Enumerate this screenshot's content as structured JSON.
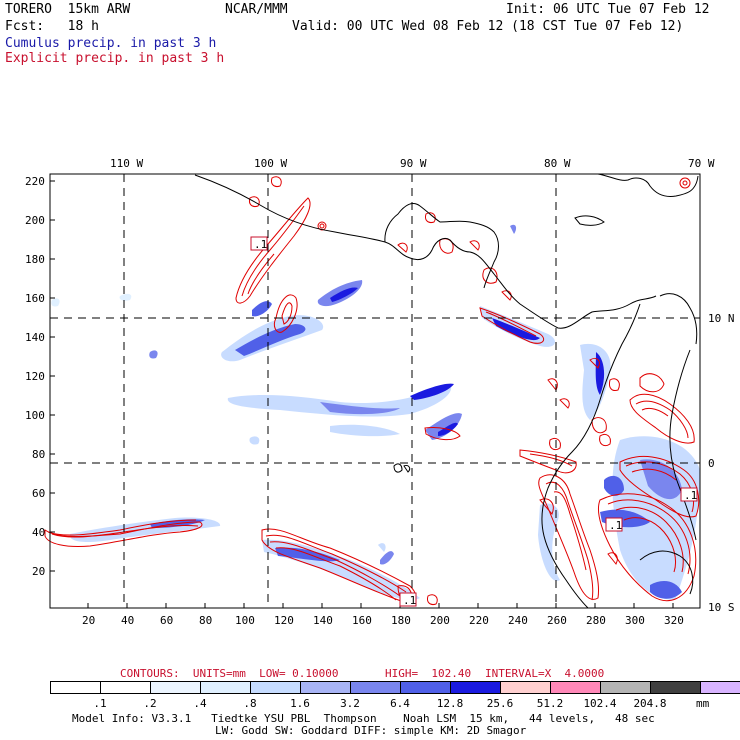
{
  "header": {
    "model": "TORERO  15km ARW",
    "org": "NCAR/MMM",
    "init": "Init: 06 UTC Tue 07 Feb 12",
    "fcst": "Fcst:   18 h",
    "valid": "Valid: 00 UTC Wed 08 Feb 12 (18 CST Tue 07 Feb 12)",
    "legend_cumulus": "Cumulus precip. in past 3 h",
    "legend_explicit": "Explicit precip. in past 3 h"
  },
  "map": {
    "lon_labels": [
      "110 W",
      "100 W",
      "90 W",
      "80 W",
      "70 W"
    ],
    "lat_labels": [
      "10 N",
      "0",
      "10 S"
    ],
    "x_ticks": [
      "20",
      "40",
      "60",
      "80",
      "100",
      "120",
      "140",
      "160",
      "180",
      "200",
      "220",
      "240",
      "260",
      "280",
      "300",
      "320"
    ],
    "y_ticks": [
      "20",
      "40",
      "60",
      "80",
      "100",
      "120",
      "140",
      "160",
      "180",
      "200",
      "220"
    ],
    "contour_labels": [
      ".1",
      ".1",
      ".1",
      ".1"
    ],
    "colors": {
      "cumulus_light": "#c8dcff",
      "cumulus_mid": "#7a8cf0",
      "cumulus_dark": "#1f1fe0",
      "explicit": "#e00000",
      "coast": "#000000"
    }
  },
  "contour_info": {
    "units": "CONTOURS:  UNITS=mm  LOW= 0.10000",
    "high": "HIGH=  102.40",
    "interval": "INTERVAL=X  4.0000"
  },
  "colorbar": {
    "labels": [
      ".1",
      ".2",
      ".4",
      ".8",
      "1.6",
      "3.2",
      "6.4",
      "12.8",
      "25.6",
      "51.2",
      "102.4",
      "204.8"
    ],
    "colors": [
      "#ffffff",
      "#ffffff",
      "#ecf5ff",
      "#e0f0ff",
      "#c6dcff",
      "#a8b4f5",
      "#7a86ee",
      "#5060e8",
      "#1a1ae0",
      "#ffd0d0",
      "#ff88b8",
      "#b4b4b4",
      "#404040",
      "#d8b4ff"
    ],
    "unit": "mm"
  },
  "footer": {
    "line1": "Model Info: V3.3.1   Tiedtke YSU PBL  Thompson    Noah LSM  15 km,   44 levels,   48 sec",
    "line2": "LW: Godd SW: Goddard DIFF: simple KM: 2D Smagor"
  }
}
